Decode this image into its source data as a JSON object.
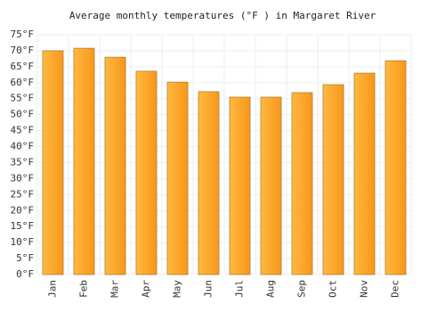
{
  "chart_data": {
    "type": "bar",
    "title": "Average monthly temperatures (°F ) in Margaret River",
    "categories": [
      "Jan",
      "Feb",
      "Mar",
      "Apr",
      "May",
      "Jun",
      "Jul",
      "Aug",
      "Sep",
      "Oct",
      "Nov",
      "Dec"
    ],
    "values": [
      70.0,
      70.8,
      68.0,
      63.6,
      60.2,
      57.2,
      55.5,
      55.5,
      56.9,
      59.4,
      63.0,
      66.9
    ],
    "color": "#ffa726",
    "ylim": [
      0,
      75
    ],
    "yticks": [
      {
        "value": 0,
        "label": "0°F"
      },
      {
        "value": 5,
        "label": "5°F"
      },
      {
        "value": 10,
        "label": "10°F"
      },
      {
        "value": 15,
        "label": "15°F"
      },
      {
        "value": 20,
        "label": "20°F"
      },
      {
        "value": 25,
        "label": "25°F"
      },
      {
        "value": 30,
        "label": "30°F"
      },
      {
        "value": 35,
        "label": "35°F"
      },
      {
        "value": 40,
        "label": "40°F"
      },
      {
        "value": 45,
        "label": "45°F"
      },
      {
        "value": 50,
        "label": "50°F"
      },
      {
        "value": 55,
        "label": "55°F"
      },
      {
        "value": 60,
        "label": "60°F"
      },
      {
        "value": 65,
        "label": "65°F"
      },
      {
        "value": 70,
        "label": "70°F"
      },
      {
        "value": 75,
        "label": "75°F"
      }
    ],
    "grid": true
  }
}
